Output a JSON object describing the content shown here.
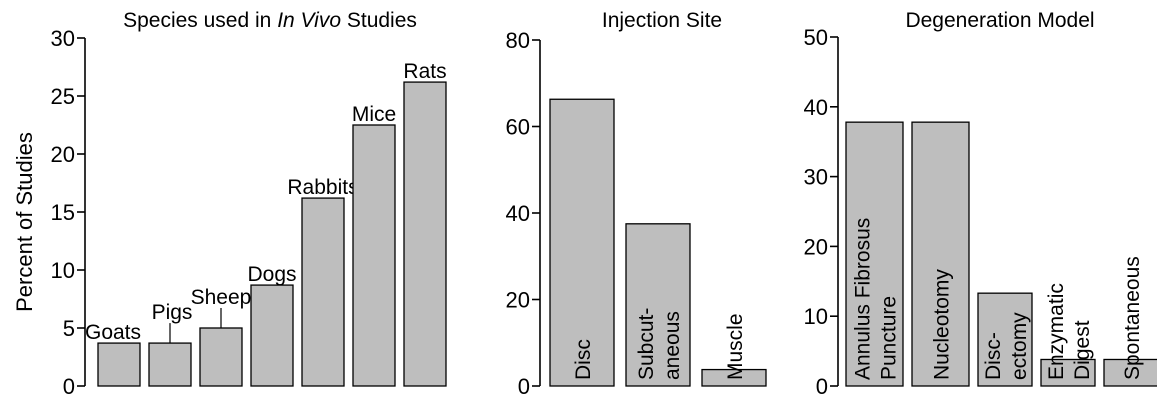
{
  "chart_data": [
    {
      "type": "bar",
      "title_parts": [
        {
          "text": "Species used in ",
          "italic": false
        },
        {
          "text": "In Vivo",
          "italic": true
        },
        {
          "text": " Studies",
          "italic": false
        }
      ],
      "ylabel": "Percent of Studies",
      "ylim": [
        0,
        30
      ],
      "yticks": [
        0,
        5,
        10,
        15,
        20,
        25,
        30
      ],
      "categories": [
        "Goats",
        "Pigs",
        "Sheep",
        "Dogs",
        "Rabbits",
        "Mice",
        "Rats"
      ],
      "values": [
        3.7,
        3.7,
        5.0,
        8.7,
        16.2,
        22.5,
        26.2
      ],
      "label_position": "above"
    },
    {
      "type": "bar",
      "title": "Injection Site",
      "ylim": [
        0,
        80
      ],
      "yticks": [
        0,
        20,
        40,
        60,
        80
      ],
      "categories": [
        "Disc",
        "Subcut-\naneous",
        "Muscle"
      ],
      "values": [
        66.3,
        37.5,
        3.8
      ],
      "label_position": "inside-vertical"
    },
    {
      "type": "bar",
      "title": "Degeneration Model",
      "ylim": [
        0,
        50
      ],
      "yticks": [
        0,
        10,
        20,
        30,
        40,
        50
      ],
      "categories": [
        "Annulus Fibrosus\nPuncture",
        "Nucleotomy",
        "Disc-\nectomy",
        "Enzymatic\nDigest",
        "Spontaneous"
      ],
      "values": [
        37.8,
        37.8,
        13.3,
        3.8,
        3.8
      ],
      "label_position": "inside-vertical"
    }
  ]
}
